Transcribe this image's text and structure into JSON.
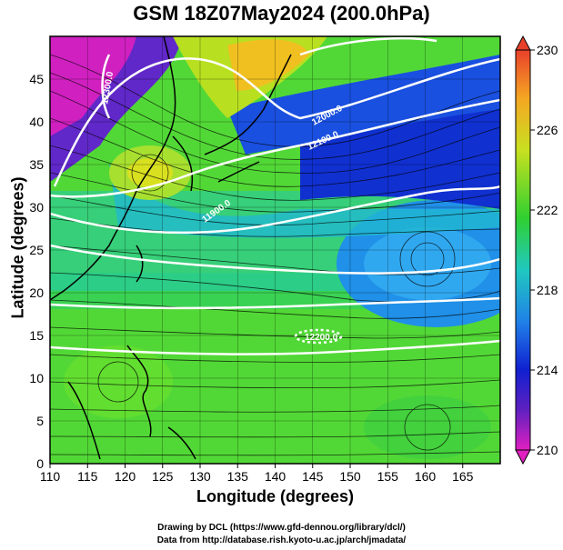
{
  "title": "GSM 18Z07May2024 (200.0hPa)",
  "xlabel": "Longitude (degrees)",
  "ylabel": "Latitude  (degrees)",
  "credit_line1": "Drawing by DCL (https://www.gfd-dennou.org/library/dcl/)",
  "credit_line2": "Data from http://database.rish.kyoto-u.ac.jp/arch/jmadata/",
  "x_ticks": [
    "110",
    "115",
    "120",
    "125",
    "130",
    "135",
    "140",
    "145",
    "150",
    "155",
    "160",
    "165"
  ],
  "y_ticks": [
    "0",
    "5",
    "10",
    "15",
    "20",
    "25",
    "30",
    "35",
    "40",
    "45"
  ],
  "colorbar_ticks": [
    "210",
    "214",
    "218",
    "222",
    "226",
    "230"
  ],
  "contour_labels": [
    "12000.0",
    "12100.0",
    "11900.0",
    "12300.0",
    "12200.0"
  ],
  "colors": {
    "colorbar_top": "#e8402a",
    "colorbar_bottom": "#e020c0",
    "contour": "#ffffff",
    "coast": "#000000"
  }
}
